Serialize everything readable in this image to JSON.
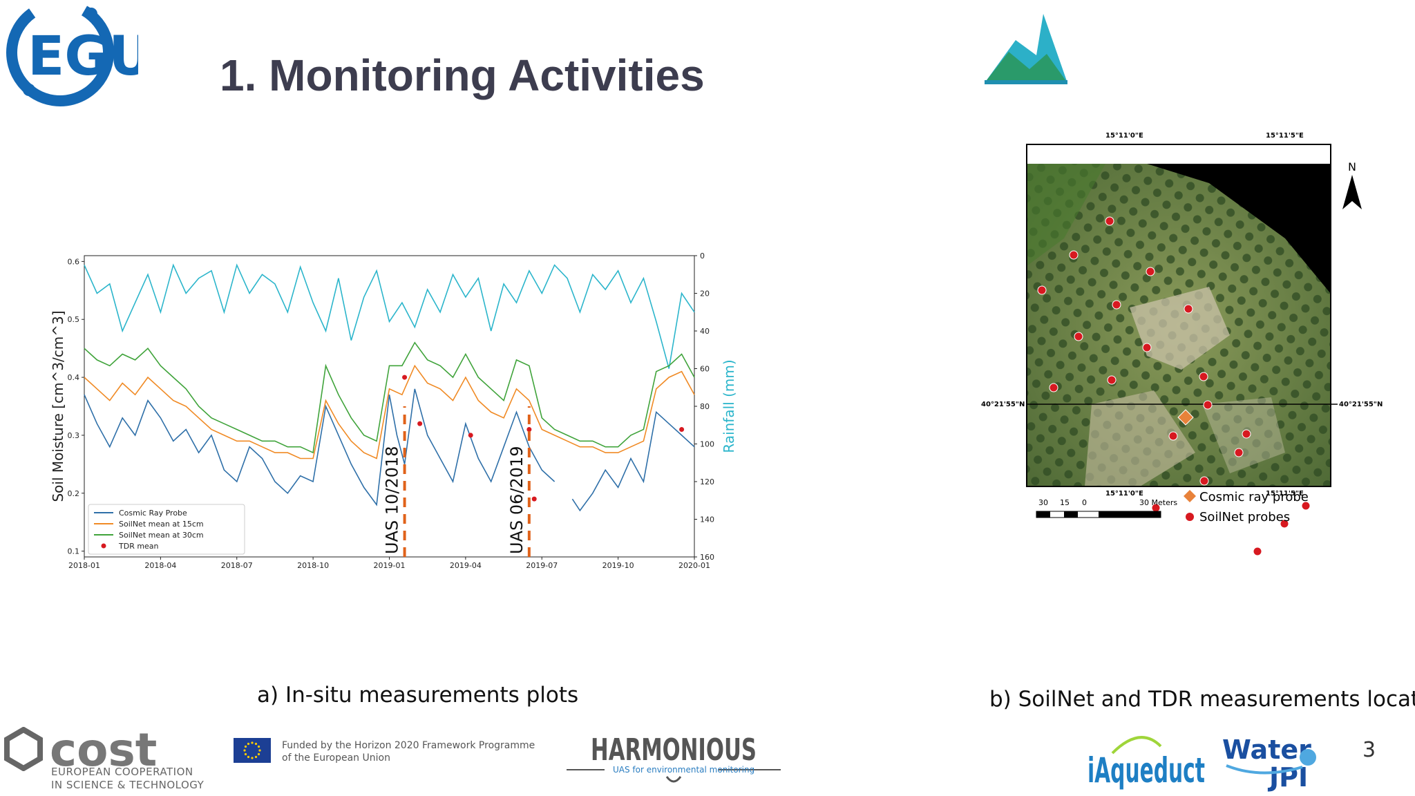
{
  "slide": {
    "title": "1. Monitoring Activities",
    "page_number": "3",
    "caption_a": "a) In-situ measurements plots",
    "caption_b": "b) SoilNet and TDR measurements location"
  },
  "logos": {
    "egu": "EGU",
    "cost": "cost",
    "cost_sub_1": "EUROPEAN COOPERATION",
    "cost_sub_2": "IN SCIENCE & TECHNOLOGY",
    "eu_funded_1": "Funded by the Horizon 2020 Framework Programme",
    "eu_funded_2": "of the European Union",
    "harmonious": "HARMONIOUS",
    "harmonious_sub": "UAS for environmental monitoring",
    "iaqueduct": "iAqueduct",
    "water_jpi_1": "Water",
    "water_jpi_2": "JPI"
  },
  "map": {
    "top_lon_left": "15°11'0\"E",
    "top_lon_right": "15°11'5\"E",
    "bottom_lon_left": "15°11'0\"E",
    "bottom_lon_right": "15°11'5\"E",
    "lat_left": "40°21'55\"N",
    "lat_right": "40°21'55\"N",
    "north": "N",
    "scale_labels": [
      "30",
      "15",
      "0",
      "30 Meters"
    ],
    "legend": [
      {
        "label": "Cosmic ray probe",
        "color": "#e8823a"
      },
      {
        "label": "SoilNet probes",
        "color": "#d71920"
      }
    ]
  },
  "chart_data": {
    "type": "line",
    "x_tick_labels": [
      "2018-01",
      "2018-04",
      "2018-07",
      "2018-10",
      "2019-01",
      "2019-04",
      "2019-07",
      "2019-10",
      "2020-01"
    ],
    "ylabel": "Soil Moisture [cm^3/cm^3]",
    "ylim": [
      0.09,
      0.61
    ],
    "y_ticks": [
      "0.6",
      "0.5",
      "0.4",
      "0.3",
      "0.2",
      "0.1"
    ],
    "ylabel_right": "Rainfall (mm)",
    "ylim_right": [
      0,
      160
    ],
    "y_ticks_right": [
      "0",
      "20",
      "40",
      "60",
      "80",
      "100",
      "120",
      "140",
      "160"
    ],
    "legend_position": "lower-left",
    "annotations": [
      {
        "text": "UAS 10/2018",
        "month": 12.6,
        "color": "#e0621a"
      },
      {
        "text": "UAS 06/2019",
        "month": 17.5,
        "color": "#e0621a"
      }
    ],
    "series": [
      {
        "name": "Cosmic Ray Probe",
        "color": "#2e6fa8",
        "points": [
          [
            0,
            0.37
          ],
          [
            0.5,
            0.32
          ],
          [
            1,
            0.28
          ],
          [
            1.5,
            0.33
          ],
          [
            2,
            0.3
          ],
          [
            2.5,
            0.36
          ],
          [
            3,
            0.33
          ],
          [
            3.5,
            0.29
          ],
          [
            4,
            0.31
          ],
          [
            4.5,
            0.27
          ],
          [
            5,
            0.3
          ],
          [
            5.5,
            0.24
          ],
          [
            6,
            0.22
          ],
          [
            6.5,
            0.28
          ],
          [
            7,
            0.26
          ],
          [
            7.5,
            0.22
          ],
          [
            8,
            0.2
          ],
          [
            8.5,
            0.23
          ],
          [
            9,
            0.22
          ],
          [
            9.5,
            0.35
          ],
          [
            10,
            0.3
          ],
          [
            10.5,
            0.25
          ],
          [
            11,
            0.21
          ],
          [
            11.5,
            0.18
          ],
          [
            12,
            0.37
          ],
          [
            12.3,
            0.3
          ],
          [
            12.6,
            0.25
          ],
          [
            13,
            0.38
          ],
          [
            13.5,
            0.3
          ],
          [
            14,
            0.26
          ],
          [
            14.5,
            0.22
          ],
          [
            15,
            0.32
          ],
          [
            15.5,
            0.26
          ],
          [
            16,
            0.22
          ],
          [
            16.5,
            0.28
          ],
          [
            17,
            0.34
          ],
          [
            17.5,
            0.28
          ],
          [
            18,
            0.24
          ],
          [
            18.5,
            0.22
          ],
          [
            19,
            null
          ],
          [
            19.2,
            0.19
          ],
          [
            19.5,
            0.17
          ],
          [
            20,
            0.2
          ],
          [
            20.5,
            0.24
          ],
          [
            21,
            0.21
          ],
          [
            21.5,
            0.26
          ],
          [
            22,
            0.22
          ],
          [
            22.5,
            0.34
          ],
          [
            23,
            0.32
          ],
          [
            23.5,
            0.3
          ],
          [
            24,
            0.28
          ]
        ]
      },
      {
        "name": "SoilNet mean at 15cm",
        "color": "#f08a24",
        "points": [
          [
            0,
            0.4
          ],
          [
            0.5,
            0.38
          ],
          [
            1,
            0.36
          ],
          [
            1.5,
            0.39
          ],
          [
            2,
            0.37
          ],
          [
            2.5,
            0.4
          ],
          [
            3,
            0.38
          ],
          [
            3.5,
            0.36
          ],
          [
            4,
            0.35
          ],
          [
            4.5,
            0.33
          ],
          [
            5,
            0.31
          ],
          [
            5.5,
            0.3
          ],
          [
            6,
            0.29
          ],
          [
            6.5,
            0.29
          ],
          [
            7,
            0.28
          ],
          [
            7.5,
            0.27
          ],
          [
            8,
            0.27
          ],
          [
            8.5,
            0.26
          ],
          [
            9,
            0.26
          ],
          [
            9.5,
            0.36
          ],
          [
            10,
            0.32
          ],
          [
            10.5,
            0.29
          ],
          [
            11,
            0.27
          ],
          [
            11.5,
            0.26
          ],
          [
            12,
            0.38
          ],
          [
            12.5,
            0.37
          ],
          [
            13,
            0.42
          ],
          [
            13.5,
            0.39
          ],
          [
            14,
            0.38
          ],
          [
            14.5,
            0.36
          ],
          [
            15,
            0.4
          ],
          [
            15.5,
            0.36
          ],
          [
            16,
            0.34
          ],
          [
            16.5,
            0.33
          ],
          [
            17,
            0.38
          ],
          [
            17.5,
            0.36
          ],
          [
            18,
            0.31
          ],
          [
            18.5,
            0.3
          ],
          [
            19,
            0.29
          ],
          [
            19.5,
            0.28
          ],
          [
            20,
            0.28
          ],
          [
            20.5,
            0.27
          ],
          [
            21,
            0.27
          ],
          [
            21.5,
            0.28
          ],
          [
            22,
            0.29
          ],
          [
            22.5,
            0.38
          ],
          [
            23,
            0.4
          ],
          [
            23.5,
            0.41
          ],
          [
            24,
            0.37
          ]
        ]
      },
      {
        "name": "SoilNet mean at 30cm",
        "color": "#3fa33a",
        "points": [
          [
            0,
            0.45
          ],
          [
            0.5,
            0.43
          ],
          [
            1,
            0.42
          ],
          [
            1.5,
            0.44
          ],
          [
            2,
            0.43
          ],
          [
            2.5,
            0.45
          ],
          [
            3,
            0.42
          ],
          [
            3.5,
            0.4
          ],
          [
            4,
            0.38
          ],
          [
            4.5,
            0.35
          ],
          [
            5,
            0.33
          ],
          [
            5.5,
            0.32
          ],
          [
            6,
            0.31
          ],
          [
            6.5,
            0.3
          ],
          [
            7,
            0.29
          ],
          [
            7.5,
            0.29
          ],
          [
            8,
            0.28
          ],
          [
            8.5,
            0.28
          ],
          [
            9,
            0.27
          ],
          [
            9.5,
            0.42
          ],
          [
            10,
            0.37
          ],
          [
            10.5,
            0.33
          ],
          [
            11,
            0.3
          ],
          [
            11.5,
            0.29
          ],
          [
            12,
            0.42
          ],
          [
            12.5,
            0.42
          ],
          [
            13,
            0.46
          ],
          [
            13.5,
            0.43
          ],
          [
            14,
            0.42
          ],
          [
            14.5,
            0.4
          ],
          [
            15,
            0.44
          ],
          [
            15.5,
            0.4
          ],
          [
            16,
            0.38
          ],
          [
            16.5,
            0.36
          ],
          [
            17,
            0.43
          ],
          [
            17.5,
            0.42
          ],
          [
            18,
            0.33
          ],
          [
            18.5,
            0.31
          ],
          [
            19,
            0.3
          ],
          [
            19.5,
            0.29
          ],
          [
            20,
            0.29
          ],
          [
            20.5,
            0.28
          ],
          [
            21,
            0.28
          ],
          [
            21.5,
            0.3
          ],
          [
            22,
            0.31
          ],
          [
            22.5,
            0.41
          ],
          [
            23,
            0.42
          ],
          [
            23.5,
            0.44
          ],
          [
            24,
            0.4
          ]
        ]
      },
      {
        "name": "TDR mean",
        "color": "#d71920",
        "points": [
          [
            12.6,
            0.4
          ],
          [
            13.2,
            0.32
          ],
          [
            15.2,
            0.3
          ],
          [
            17.5,
            0.31
          ],
          [
            17.7,
            0.19
          ],
          [
            23.5,
            0.31
          ]
        ]
      },
      {
        "name": "Rainfall",
        "axis": "right",
        "color": "#2bb5cb",
        "points": [
          [
            0,
            5
          ],
          [
            0.5,
            20
          ],
          [
            1,
            15
          ],
          [
            1.5,
            40
          ],
          [
            2,
            25
          ],
          [
            2.5,
            10
          ],
          [
            3,
            30
          ],
          [
            3.5,
            5
          ],
          [
            4,
            20
          ],
          [
            4.5,
            12
          ],
          [
            5,
            8
          ],
          [
            5.5,
            30
          ],
          [
            6,
            5
          ],
          [
            6.5,
            20
          ],
          [
            7,
            10
          ],
          [
            7.5,
            15
          ],
          [
            8,
            30
          ],
          [
            8.5,
            6
          ],
          [
            9,
            25
          ],
          [
            9.5,
            40
          ],
          [
            10,
            12
          ],
          [
            10.5,
            45
          ],
          [
            11,
            22
          ],
          [
            11.5,
            8
          ],
          [
            12,
            35
          ],
          [
            12.5,
            25
          ],
          [
            13,
            38
          ],
          [
            13.5,
            18
          ],
          [
            14,
            30
          ],
          [
            14.5,
            10
          ],
          [
            15,
            22
          ],
          [
            15.5,
            12
          ],
          [
            16,
            40
          ],
          [
            16.5,
            15
          ],
          [
            17,
            25
          ],
          [
            17.5,
            8
          ],
          [
            18,
            20
          ],
          [
            18.5,
            5
          ],
          [
            19,
            12
          ],
          [
            19.5,
            30
          ],
          [
            20,
            10
          ],
          [
            20.5,
            18
          ],
          [
            21,
            8
          ],
          [
            21.5,
            25
          ],
          [
            22,
            12
          ],
          [
            22.5,
            35
          ],
          [
            23,
            60
          ],
          [
            23.5,
            20
          ],
          [
            24,
            30
          ]
        ]
      }
    ]
  }
}
